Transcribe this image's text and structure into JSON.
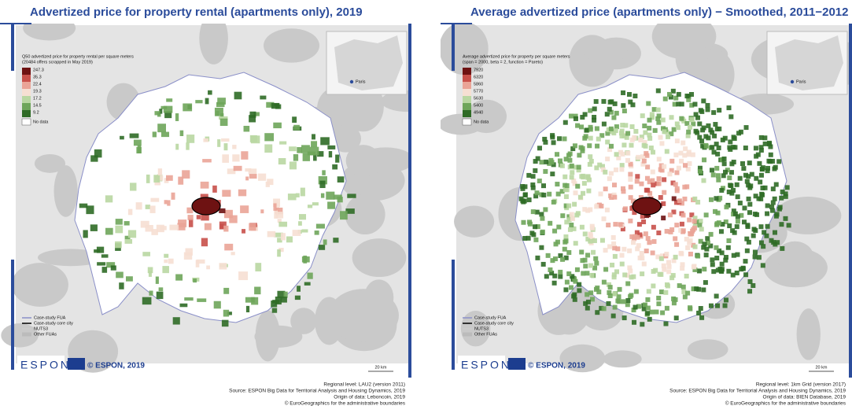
{
  "panels": [
    {
      "title": "Advertized price for property rental (apartments only), 2019",
      "legend_title": [
        "Q50 advertized price for property rental per square meters",
        "(20484 offers scrapped in May 2019)"
      ],
      "breaks": [
        "247.3",
        "35.3",
        "22.4",
        "19.3",
        "17.2",
        "14.5",
        "9.2"
      ],
      "colors": [
        "#6e1212",
        "#c8504a",
        "#eaa497",
        "#f6dfd3",
        "#b9d7a2",
        "#6ea55a",
        "#2f6b26"
      ],
      "no_data": "No data",
      "inset_label": "Paris",
      "bottom_legend": [
        "Case-study FUA",
        "Case-study core city",
        "NUTS3",
        "Other FUAs"
      ],
      "logo": "ESPON",
      "copyright": "© ESPON, 2019",
      "scale": "20 km",
      "source": [
        "Regional level: LAU2 (version 2011)",
        "Source: ESPON Big Data for Territorial Analysis and Housing Dynamics, 2019",
        "Origin of data: Leboncoin, 2019",
        "© EuroGeographics for the administrative boundaries"
      ]
    },
    {
      "title": "Average advertized price (apartments only) − Smoothed, 2011−2012",
      "legend_title": [
        "Average advertized price for property per square meters",
        "(span = 2000, beta = 2, function = Pareto)"
      ],
      "breaks": [
        "7920",
        "6320",
        "5860",
        "5770",
        "5630",
        "5400",
        "4940"
      ],
      "colors": [
        "#6e1212",
        "#c8504a",
        "#eaa497",
        "#f6dfd3",
        "#b9d7a2",
        "#6ea55a",
        "#2f6b26"
      ],
      "no_data": "No data",
      "inset_label": "Paris",
      "bottom_legend": [
        "Case-study FUA",
        "Case-study core city",
        "NUTS3",
        "Other FUAs"
      ],
      "logo": "ESPON",
      "copyright": "© ESPON, 2019",
      "scale": "20 km",
      "source": [
        "Regional level: 1km Grid (version 2017)",
        "Source: ESPON Big Data for Territorial Analysis and Housing Dynamics, 2019",
        "Origin of data: BIEN Database, 2019",
        "© EuroGeographics for the administrative boundaries"
      ]
    }
  ]
}
